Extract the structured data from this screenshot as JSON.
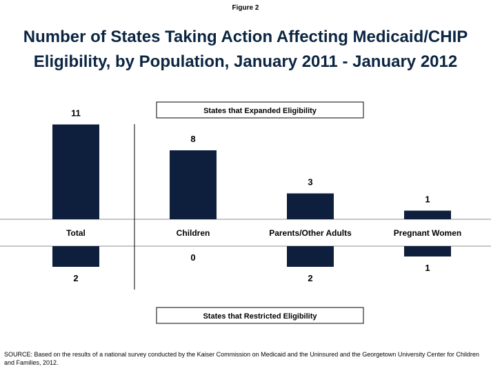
{
  "figure_label": "Figure 2",
  "title_lines": [
    "Number of States Taking Action Affecting Medicaid/CHIP",
    "Eligibility, by Population, January 2011 - January 2012"
  ],
  "source": "SOURCE: Based on the results of a national survey conducted by the Kaiser Commission on Medicaid and the Uninsured and the Georgetown University Center for Children and Families, 2012.",
  "colors": {
    "bar": "#0d1f3c",
    "axis": "#8c8c8c",
    "title": "#0b2541"
  },
  "chart_data": {
    "type": "bar",
    "categories": [
      "Total",
      "Children",
      "Parents/Other Adults",
      "Pregnant Women"
    ],
    "series": [
      {
        "name": "States that Expanded Eligibility",
        "values": [
          11,
          8,
          3,
          1
        ]
      },
      {
        "name": "States that Restricted Eligibility",
        "values": [
          2,
          0,
          2,
          1
        ]
      }
    ]
  }
}
